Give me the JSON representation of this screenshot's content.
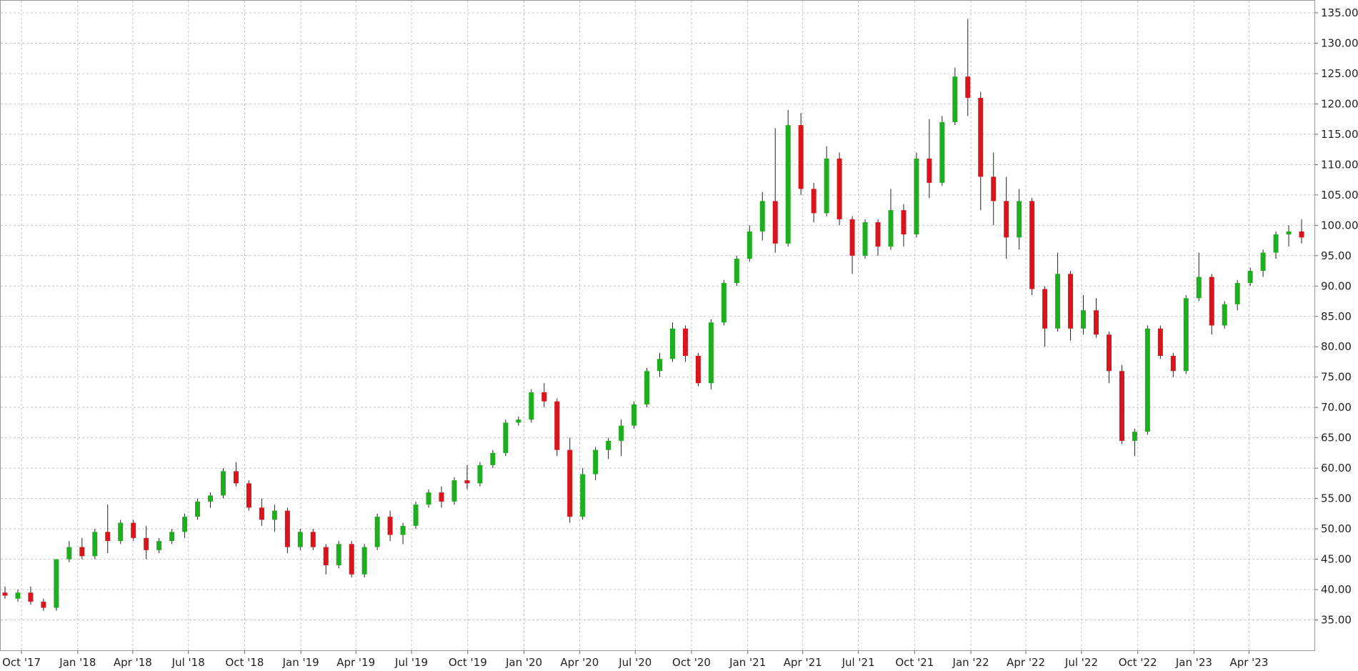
{
  "colors": {
    "background": "#ffffff",
    "up": "#1fae1f",
    "down": "#d9141a",
    "wick": "#222222",
    "grid": "#c4c4c4",
    "axis_text": "#222222"
  },
  "chart_data": {
    "type": "candlestick",
    "interval": "weekly",
    "title": "",
    "xlabel": "",
    "ylabel": "",
    "y_axis_position": "right",
    "ylim": [
      30,
      137
    ],
    "xlim": [
      "2017-08-28",
      "2023-07-17"
    ],
    "grid": true,
    "y_ticks": [
      "35.00",
      "40.00",
      "45.00",
      "50.00",
      "55.00",
      "60.00",
      "65.00",
      "70.00",
      "75.00",
      "80.00",
      "85.00",
      "90.00",
      "95.00",
      "100.00",
      "105.00",
      "110.00",
      "115.00",
      "120.00",
      "125.00",
      "130.00",
      "135.00"
    ],
    "x_ticks": [
      {
        "label": "Oct '17",
        "date": "2017-10-01"
      },
      {
        "label": "Jan '18",
        "date": "2018-01-01"
      },
      {
        "label": "Apr '18",
        "date": "2018-04-01"
      },
      {
        "label": "Jul '18",
        "date": "2018-07-01"
      },
      {
        "label": "Oct '18",
        "date": "2018-10-01"
      },
      {
        "label": "Jan '19",
        "date": "2019-01-01"
      },
      {
        "label": "Apr '19",
        "date": "2019-04-01"
      },
      {
        "label": "Jul '19",
        "date": "2019-07-01"
      },
      {
        "label": "Oct '19",
        "date": "2019-10-01"
      },
      {
        "label": "Jan '20",
        "date": "2020-01-01"
      },
      {
        "label": "Apr '20",
        "date": "2020-04-01"
      },
      {
        "label": "Jul '20",
        "date": "2020-07-01"
      },
      {
        "label": "Oct '20",
        "date": "2020-10-01"
      },
      {
        "label": "Jan '21",
        "date": "2021-01-01"
      },
      {
        "label": "Apr '21",
        "date": "2021-04-01"
      },
      {
        "label": "Jul '21",
        "date": "2021-07-01"
      },
      {
        "label": "Oct '21",
        "date": "2021-10-01"
      },
      {
        "label": "Jan '22",
        "date": "2022-01-01"
      },
      {
        "label": "Apr '22",
        "date": "2022-04-01"
      },
      {
        "label": "Jul '22",
        "date": "2022-07-01"
      },
      {
        "label": "Oct '22",
        "date": "2022-10-01"
      },
      {
        "label": "Jan '23",
        "date": "2023-01-01"
      },
      {
        "label": "Apr '23",
        "date": "2023-04-01"
      }
    ],
    "series": [
      {
        "week_of": "2017-09-04",
        "open": 39.5,
        "high": 40.5,
        "low": 38.5,
        "close": 39.0
      },
      {
        "week_of": "2017-09-25",
        "open": 38.5,
        "high": 40.0,
        "low": 38.0,
        "close": 39.5
      },
      {
        "week_of": "2017-10-16",
        "open": 39.5,
        "high": 40.5,
        "low": 37.5,
        "close": 38.0
      },
      {
        "week_of": "2017-11-06",
        "open": 38.0,
        "high": 38.5,
        "low": 36.5,
        "close": 37.0
      },
      {
        "week_of": "2017-11-27",
        "open": 37.0,
        "high": 45.0,
        "low": 36.5,
        "close": 45.0
      },
      {
        "week_of": "2017-12-18",
        "open": 45.0,
        "high": 48.0,
        "low": 44.5,
        "close": 47.0
      },
      {
        "week_of": "2018-01-08",
        "open": 47.0,
        "high": 48.5,
        "low": 45.0,
        "close": 45.5
      },
      {
        "week_of": "2018-01-29",
        "open": 45.5,
        "high": 50.0,
        "low": 45.0,
        "close": 49.5
      },
      {
        "week_of": "2018-02-19",
        "open": 49.5,
        "high": 54.0,
        "low": 46.0,
        "close": 48.0
      },
      {
        "week_of": "2018-03-12",
        "open": 48.0,
        "high": 51.5,
        "low": 47.5,
        "close": 51.0
      },
      {
        "week_of": "2018-04-02",
        "open": 51.0,
        "high": 51.5,
        "low": 48.0,
        "close": 48.5
      },
      {
        "week_of": "2018-04-23",
        "open": 48.5,
        "high": 50.5,
        "low": 45.0,
        "close": 46.5
      },
      {
        "week_of": "2018-05-14",
        "open": 46.5,
        "high": 48.5,
        "low": 46.0,
        "close": 48.0
      },
      {
        "week_of": "2018-06-04",
        "open": 48.0,
        "high": 50.0,
        "low": 47.5,
        "close": 49.5
      },
      {
        "week_of": "2018-06-25",
        "open": 49.5,
        "high": 52.5,
        "low": 48.5,
        "close": 52.0
      },
      {
        "week_of": "2018-07-16",
        "open": 52.0,
        "high": 55.0,
        "low": 51.5,
        "close": 54.5
      },
      {
        "week_of": "2018-08-06",
        "open": 54.5,
        "high": 56.0,
        "low": 53.5,
        "close": 55.5
      },
      {
        "week_of": "2018-08-27",
        "open": 55.5,
        "high": 60.0,
        "low": 55.0,
        "close": 59.5
      },
      {
        "week_of": "2018-09-17",
        "open": 59.5,
        "high": 61.0,
        "low": 57.0,
        "close": 57.5
      },
      {
        "week_of": "2018-10-08",
        "open": 57.5,
        "high": 58.0,
        "low": 53.0,
        "close": 53.5
      },
      {
        "week_of": "2018-10-29",
        "open": 53.5,
        "high": 55.0,
        "low": 50.5,
        "close": 51.5
      },
      {
        "week_of": "2018-11-19",
        "open": 51.5,
        "high": 54.0,
        "low": 49.5,
        "close": 53.0
      },
      {
        "week_of": "2018-12-10",
        "open": 53.0,
        "high": 53.5,
        "low": 46.0,
        "close": 47.0
      },
      {
        "week_of": "2018-12-31",
        "open": 47.0,
        "high": 50.0,
        "low": 46.5,
        "close": 49.5
      },
      {
        "week_of": "2019-01-21",
        "open": 49.5,
        "high": 50.0,
        "low": 46.5,
        "close": 47.0
      },
      {
        "week_of": "2019-02-11",
        "open": 47.0,
        "high": 47.5,
        "low": 42.5,
        "close": 44.0
      },
      {
        "week_of": "2019-03-04",
        "open": 44.0,
        "high": 48.0,
        "low": 43.5,
        "close": 47.5
      },
      {
        "week_of": "2019-03-25",
        "open": 47.5,
        "high": 48.0,
        "low": 42.0,
        "close": 42.5
      },
      {
        "week_of": "2019-04-15",
        "open": 42.5,
        "high": 47.5,
        "low": 42.0,
        "close": 47.0
      },
      {
        "week_of": "2019-05-06",
        "open": 47.0,
        "high": 52.5,
        "low": 46.5,
        "close": 52.0
      },
      {
        "week_of": "2019-05-27",
        "open": 52.0,
        "high": 53.0,
        "low": 48.0,
        "close": 49.0
      },
      {
        "week_of": "2019-06-17",
        "open": 49.0,
        "high": 51.0,
        "low": 47.5,
        "close": 50.5
      },
      {
        "week_of": "2019-07-08",
        "open": 50.5,
        "high": 54.5,
        "low": 50.0,
        "close": 54.0
      },
      {
        "week_of": "2019-07-29",
        "open": 54.0,
        "high": 56.5,
        "low": 53.5,
        "close": 56.0
      },
      {
        "week_of": "2019-08-19",
        "open": 56.0,
        "high": 57.0,
        "low": 53.5,
        "close": 54.5
      },
      {
        "week_of": "2019-09-09",
        "open": 54.5,
        "high": 58.5,
        "low": 54.0,
        "close": 58.0
      },
      {
        "week_of": "2019-09-30",
        "open": 58.0,
        "high": 60.5,
        "low": 56.5,
        "close": 57.5
      },
      {
        "week_of": "2019-10-21",
        "open": 57.5,
        "high": 61.0,
        "low": 57.0,
        "close": 60.5
      },
      {
        "week_of": "2019-11-11",
        "open": 60.5,
        "high": 63.0,
        "low": 60.0,
        "close": 62.5
      },
      {
        "week_of": "2019-12-02",
        "open": 62.5,
        "high": 68.0,
        "low": 62.0,
        "close": 67.5
      },
      {
        "week_of": "2019-12-23",
        "open": 67.5,
        "high": 68.5,
        "low": 67.0,
        "close": 68.0
      },
      {
        "week_of": "2020-01-13",
        "open": 68.0,
        "high": 73.0,
        "low": 67.5,
        "close": 72.5
      },
      {
        "week_of": "2020-02-03",
        "open": 72.5,
        "high": 74.0,
        "low": 70.0,
        "close": 71.0
      },
      {
        "week_of": "2020-02-24",
        "open": 71.0,
        "high": 71.5,
        "low": 62.0,
        "close": 63.0
      },
      {
        "week_of": "2020-03-16",
        "open": 63.0,
        "high": 65.0,
        "low": 51.0,
        "close": 52.0
      },
      {
        "week_of": "2020-04-06",
        "open": 52.0,
        "high": 60.0,
        "low": 51.5,
        "close": 59.0
      },
      {
        "week_of": "2020-04-27",
        "open": 59.0,
        "high": 63.5,
        "low": 58.0,
        "close": 63.0
      },
      {
        "week_of": "2020-05-18",
        "open": 63.0,
        "high": 65.0,
        "low": 61.5,
        "close": 64.5
      },
      {
        "week_of": "2020-06-08",
        "open": 64.5,
        "high": 68.0,
        "low": 62.0,
        "close": 67.0
      },
      {
        "week_of": "2020-06-29",
        "open": 67.0,
        "high": 71.0,
        "low": 66.5,
        "close": 70.5
      },
      {
        "week_of": "2020-07-20",
        "open": 70.5,
        "high": 76.5,
        "low": 70.0,
        "close": 76.0
      },
      {
        "week_of": "2020-08-10",
        "open": 76.0,
        "high": 79.0,
        "low": 75.0,
        "close": 78.0
      },
      {
        "week_of": "2020-08-31",
        "open": 78.0,
        "high": 84.0,
        "low": 77.5,
        "close": 83.0
      },
      {
        "week_of": "2020-09-21",
        "open": 83.0,
        "high": 83.5,
        "low": 77.5,
        "close": 78.5
      },
      {
        "week_of": "2020-10-12",
        "open": 78.5,
        "high": 79.0,
        "low": 73.5,
        "close": 74.0
      },
      {
        "week_of": "2020-11-02",
        "open": 74.0,
        "high": 84.5,
        "low": 73.0,
        "close": 84.0
      },
      {
        "week_of": "2020-11-23",
        "open": 84.0,
        "high": 91.0,
        "low": 83.5,
        "close": 90.5
      },
      {
        "week_of": "2020-12-14",
        "open": 90.5,
        "high": 95.0,
        "low": 90.0,
        "close": 94.5
      },
      {
        "week_of": "2021-01-04",
        "open": 94.5,
        "high": 100.0,
        "low": 94.0,
        "close": 99.0
      },
      {
        "week_of": "2021-01-25",
        "open": 99.0,
        "high": 105.5,
        "low": 97.5,
        "close": 104.0
      },
      {
        "week_of": "2021-02-15",
        "open": 104.0,
        "high": 116.0,
        "low": 95.5,
        "close": 97.0
      },
      {
        "week_of": "2021-03-08",
        "open": 97.0,
        "high": 119.0,
        "low": 96.5,
        "close": 116.5
      },
      {
        "week_of": "2021-03-29",
        "open": 116.5,
        "high": 118.5,
        "low": 105.0,
        "close": 106.0
      },
      {
        "week_of": "2021-04-19",
        "open": 106.0,
        "high": 107.0,
        "low": 100.5,
        "close": 102.0
      },
      {
        "week_of": "2021-05-10",
        "open": 102.0,
        "high": 113.0,
        "low": 101.5,
        "close": 111.0
      },
      {
        "week_of": "2021-05-31",
        "open": 111.0,
        "high": 112.0,
        "low": 100.0,
        "close": 101.0
      },
      {
        "week_of": "2021-06-21",
        "open": 101.0,
        "high": 101.5,
        "low": 92.0,
        "close": 95.0
      },
      {
        "week_of": "2021-07-12",
        "open": 95.0,
        "high": 101.0,
        "low": 94.5,
        "close": 100.5
      },
      {
        "week_of": "2021-08-02",
        "open": 100.5,
        "high": 101.0,
        "low": 95.0,
        "close": 96.5
      },
      {
        "week_of": "2021-08-23",
        "open": 96.5,
        "high": 106.0,
        "low": 96.0,
        "close": 102.5
      },
      {
        "week_of": "2021-09-13",
        "open": 102.5,
        "high": 103.5,
        "low": 96.5,
        "close": 98.5
      },
      {
        "week_of": "2021-10-04",
        "open": 98.5,
        "high": 112.0,
        "low": 98.0,
        "close": 111.0
      },
      {
        "week_of": "2021-10-25",
        "open": 111.0,
        "high": 117.5,
        "low": 104.5,
        "close": 107.0
      },
      {
        "week_of": "2021-11-15",
        "open": 107.0,
        "high": 118.0,
        "low": 106.5,
        "close": 117.0
      },
      {
        "week_of": "2021-12-06",
        "open": 117.0,
        "high": 126.0,
        "low": 116.5,
        "close": 124.5
      },
      {
        "week_of": "2021-12-27",
        "open": 124.5,
        "high": 134.0,
        "low": 118.0,
        "close": 121.0
      },
      {
        "week_of": "2022-01-17",
        "open": 121.0,
        "high": 122.0,
        "low": 102.5,
        "close": 108.0
      },
      {
        "week_of": "2022-02-07",
        "open": 108.0,
        "high": 112.0,
        "low": 100.0,
        "close": 104.0
      },
      {
        "week_of": "2022-02-28",
        "open": 104.0,
        "high": 108.0,
        "low": 94.5,
        "close": 98.0
      },
      {
        "week_of": "2022-03-21",
        "open": 98.0,
        "high": 106.0,
        "low": 96.0,
        "close": 104.0
      },
      {
        "week_of": "2022-04-11",
        "open": 104.0,
        "high": 104.5,
        "low": 88.5,
        "close": 89.5
      },
      {
        "week_of": "2022-05-02",
        "open": 89.5,
        "high": 90.0,
        "low": 80.0,
        "close": 83.0
      },
      {
        "week_of": "2022-05-23",
        "open": 83.0,
        "high": 95.5,
        "low": 82.5,
        "close": 92.0
      },
      {
        "week_of": "2022-06-13",
        "open": 92.0,
        "high": 92.5,
        "low": 81.0,
        "close": 83.0
      },
      {
        "week_of": "2022-07-04",
        "open": 83.0,
        "high": 88.5,
        "low": 82.0,
        "close": 86.0
      },
      {
        "week_of": "2022-07-25",
        "open": 86.0,
        "high": 88.0,
        "low": 81.5,
        "close": 82.0
      },
      {
        "week_of": "2022-08-15",
        "open": 82.0,
        "high": 82.5,
        "low": 74.0,
        "close": 76.0
      },
      {
        "week_of": "2022-09-05",
        "open": 76.0,
        "high": 77.0,
        "low": 64.0,
        "close": 64.5
      },
      {
        "week_of": "2022-09-26",
        "open": 64.5,
        "high": 66.5,
        "low": 62.0,
        "close": 66.0
      },
      {
        "week_of": "2022-10-17",
        "open": 66.0,
        "high": 83.5,
        "low": 65.5,
        "close": 83.0
      },
      {
        "week_of": "2022-11-07",
        "open": 83.0,
        "high": 83.5,
        "low": 78.0,
        "close": 78.5
      },
      {
        "week_of": "2022-11-28",
        "open": 78.5,
        "high": 79.0,
        "low": 75.0,
        "close": 76.0
      },
      {
        "week_of": "2022-12-19",
        "open": 76.0,
        "high": 88.5,
        "low": 75.5,
        "close": 88.0
      },
      {
        "week_of": "2023-01-09",
        "open": 88.0,
        "high": 95.5,
        "low": 87.5,
        "close": 91.5
      },
      {
        "week_of": "2023-01-30",
        "open": 91.5,
        "high": 92.0,
        "low": 82.0,
        "close": 83.5
      },
      {
        "week_of": "2023-02-20",
        "open": 83.5,
        "high": 87.5,
        "low": 83.0,
        "close": 87.0
      },
      {
        "week_of": "2023-03-13",
        "open": 87.0,
        "high": 91.0,
        "low": 86.0,
        "close": 90.5
      },
      {
        "week_of": "2023-04-03",
        "open": 90.5,
        "high": 93.0,
        "low": 90.0,
        "close": 92.5
      },
      {
        "week_of": "2023-04-24",
        "open": 92.5,
        "high": 96.0,
        "low": 91.5,
        "close": 95.5
      },
      {
        "week_of": "2023-05-15",
        "open": 95.5,
        "high": 99.0,
        "low": 94.5,
        "close": 98.5
      },
      {
        "week_of": "2023-06-05",
        "open": 98.5,
        "high": 100.0,
        "low": 96.5,
        "close": 99.0
      },
      {
        "week_of": "2023-06-26",
        "open": 99.0,
        "high": 101.0,
        "low": 97.0,
        "close": 98.0
      }
    ]
  }
}
